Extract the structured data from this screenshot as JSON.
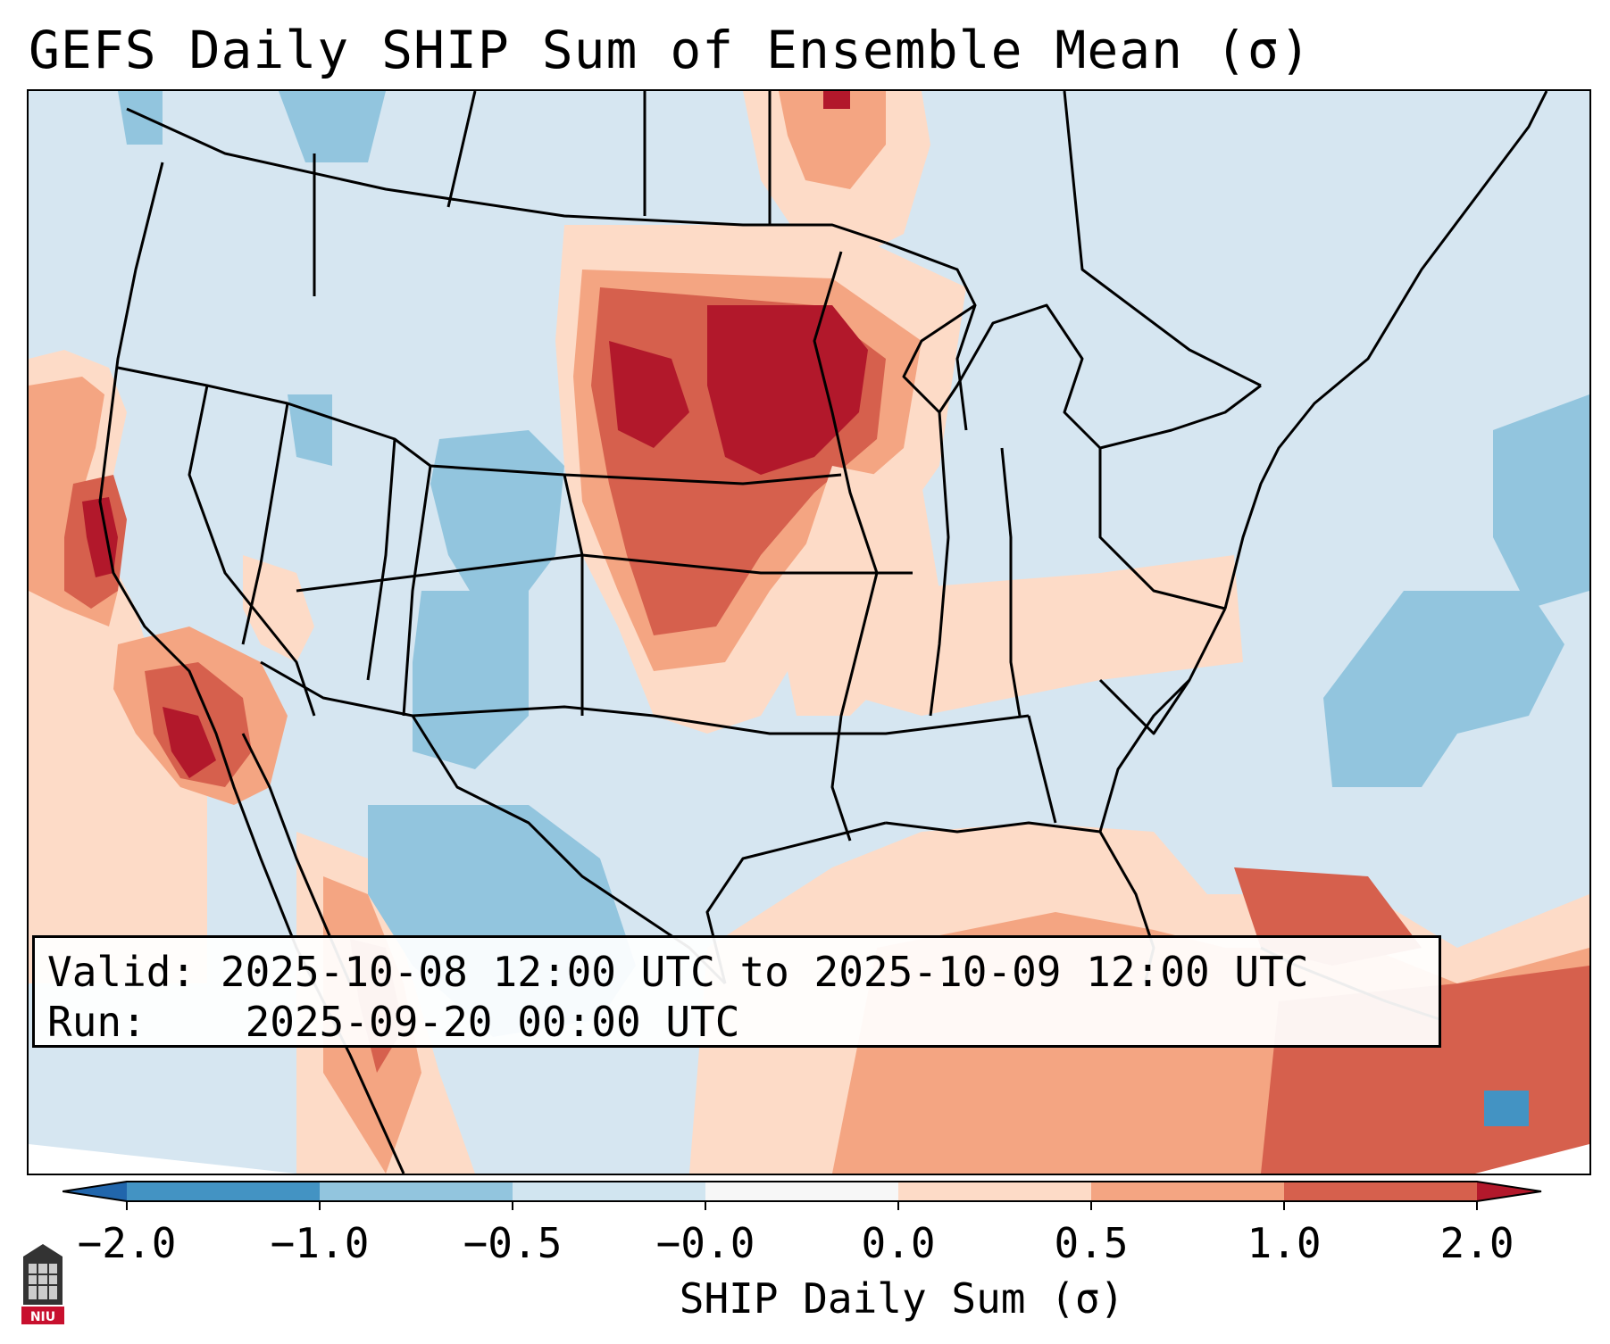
{
  "title": "GEFS Daily SHIP Sum of Ensemble Mean (σ)",
  "info": {
    "valid_label": "Valid:",
    "valid_value": "2025-10-08 12:00 UTC to 2025-10-09 12:00 UTC",
    "run_label": "Run:",
    "run_value": "2025-09-20 00:00 UTC"
  },
  "colorbar": {
    "label": "SHIP Daily Sum (σ)",
    "ticks": [
      "−2.0",
      "−1.0",
      "−0.5",
      "−0.0",
      "0.0",
      "0.5",
      "1.0",
      "2.0"
    ],
    "colors": [
      "#4393c3",
      "#92c5de",
      "#d1e5f0",
      "#f7f7f7",
      "#fddbc7",
      "#f4a582",
      "#d6604d"
    ],
    "extend_low_color": "#2166ac",
    "extend_high_color": "#b2182b"
  },
  "logo": {
    "text": "NIU"
  }
}
